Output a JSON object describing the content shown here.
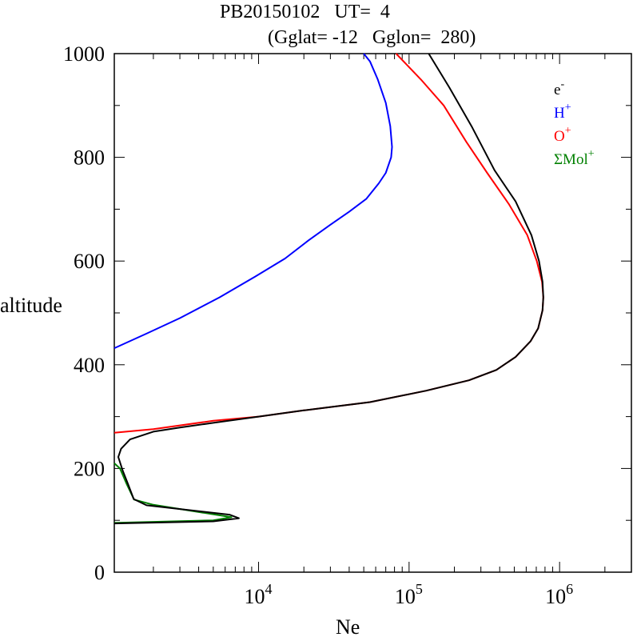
{
  "chart_data": {
    "type": "line",
    "title_line1": "PB20150102   UT=  4",
    "title_line2": "(Gglat= -12   Gglon=  280)",
    "xlabel": "Ne",
    "ylabel": "altitude",
    "x_scale": "log",
    "xlim": [
      1100,
      3000000
    ],
    "ylim": [
      0,
      1000
    ],
    "y_ticks": [
      0,
      200,
      400,
      600,
      800,
      1000
    ],
    "x_ticks": [
      {
        "value": 10000,
        "base": "10",
        "exp": "4"
      },
      {
        "value": 100000,
        "base": "10",
        "exp": "5"
      },
      {
        "value": 1000000,
        "base": "10",
        "exp": "6"
      }
    ],
    "legend": [
      {
        "base": "e",
        "sup": "-",
        "color": "#000000"
      },
      {
        "base": "H",
        "sup": "+",
        "color": "#0000ff"
      },
      {
        "base": "O",
        "sup": "+",
        "color": "#ff0000"
      },
      {
        "base": "ΣMol",
        "sup": "+",
        "color": "#008000"
      }
    ],
    "series": [
      {
        "name": "H+",
        "color": "#0000ff",
        "points": [
          [
            1100,
            432
          ],
          [
            1800,
            460
          ],
          [
            3000,
            490
          ],
          [
            5500,
            530
          ],
          [
            9500,
            570
          ],
          [
            15000,
            605
          ],
          [
            21500,
            640
          ],
          [
            30000,
            670
          ],
          [
            40000,
            695
          ],
          [
            52000,
            720
          ],
          [
            63000,
            750
          ],
          [
            70000,
            770
          ],
          [
            76000,
            800
          ],
          [
            77000,
            820
          ],
          [
            75000,
            860
          ],
          [
            70000,
            905
          ],
          [
            62000,
            950
          ],
          [
            55000,
            985
          ],
          [
            50000,
            1000
          ]
        ]
      },
      {
        "name": "O+",
        "color": "#ff0000",
        "points": [
          [
            1100,
            269
          ],
          [
            2000,
            276
          ],
          [
            5000,
            292
          ],
          [
            10000,
            300
          ],
          [
            20000,
            312
          ],
          [
            55000,
            328
          ],
          [
            130000,
            350
          ],
          [
            250000,
            370
          ],
          [
            380000,
            390
          ],
          [
            510000,
            415
          ],
          [
            640000,
            445
          ],
          [
            720000,
            470
          ],
          [
            770000,
            505
          ],
          [
            780000,
            530
          ],
          [
            765000,
            560
          ],
          [
            705000,
            600
          ],
          [
            610000,
            650
          ],
          [
            460000,
            710
          ],
          [
            330000,
            770
          ],
          [
            240000,
            830
          ],
          [
            170000,
            900
          ],
          [
            120000,
            950
          ],
          [
            82000,
            1000
          ]
        ]
      },
      {
        "name": "ΣMol+",
        "color": "#008000",
        "points": [
          [
            1100,
            95
          ],
          [
            5000,
            100
          ],
          [
            6600,
            106
          ],
          [
            2000,
            130
          ],
          [
            1490,
            140
          ],
          [
            1330,
            170
          ],
          [
            1200,
            200
          ],
          [
            1100,
            210
          ]
        ]
      },
      {
        "name": "e-",
        "color": "#000000",
        "points": [
          [
            1100,
            94
          ],
          [
            5000,
            98
          ],
          [
            7400,
            104
          ],
          [
            6400,
            111
          ],
          [
            1800,
            129
          ],
          [
            1480,
            141
          ],
          [
            1360,
            169
          ],
          [
            1250,
            196
          ],
          [
            1170,
            222
          ],
          [
            1220,
            238
          ],
          [
            1400,
            256
          ],
          [
            2000,
            271
          ],
          [
            3000,
            279
          ],
          [
            5000,
            288
          ],
          [
            10000,
            300
          ],
          [
            20000,
            312
          ],
          [
            55000,
            328
          ],
          [
            130000,
            350
          ],
          [
            250000,
            370
          ],
          [
            380000,
            390
          ],
          [
            510000,
            415
          ],
          [
            640000,
            445
          ],
          [
            720000,
            470
          ],
          [
            770000,
            505
          ],
          [
            780000,
            530
          ],
          [
            770000,
            560
          ],
          [
            730000,
            600
          ],
          [
            650000,
            650
          ],
          [
            510000,
            715
          ],
          [
            370000,
            775
          ],
          [
            260000,
            860
          ],
          [
            185000,
            935
          ],
          [
            135000,
            1000
          ]
        ]
      }
    ]
  }
}
